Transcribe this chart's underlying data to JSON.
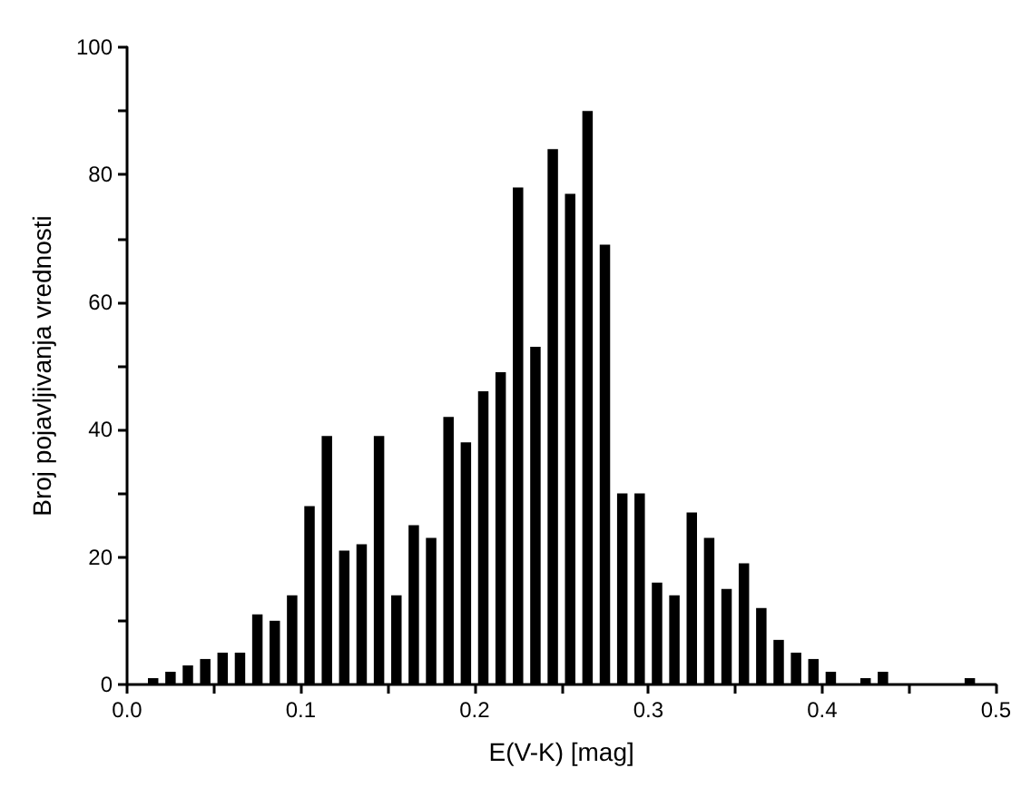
{
  "chart_data": {
    "type": "histogram",
    "xlabel": "E(V-K) [mag]",
    "ylabel": "Broj pojavljivanja vrednosti",
    "bins": [
      0.01,
      0.02,
      0.03,
      0.04,
      0.05,
      0.06,
      0.07,
      0.08,
      0.09,
      0.1,
      0.11,
      0.12,
      0.13,
      0.14,
      0.15,
      0.16,
      0.17,
      0.18,
      0.19,
      0.2,
      0.21,
      0.22,
      0.23,
      0.24,
      0.25,
      0.26,
      0.27,
      0.28,
      0.29,
      0.3,
      0.31,
      0.32,
      0.33,
      0.34,
      0.35,
      0.36,
      0.37,
      0.38,
      0.39,
      0.4,
      0.41,
      0.42,
      0.43,
      0.44,
      0.45,
      0.46,
      0.47,
      0.48,
      0.49
    ],
    "values": [
      1,
      2,
      3,
      4,
      5,
      5,
      11,
      10,
      14,
      28,
      39,
      21,
      22,
      39,
      14,
      25,
      23,
      42,
      38,
      46,
      49,
      78,
      53,
      84,
      77,
      90,
      69,
      30,
      30,
      16,
      14,
      27,
      23,
      15,
      19,
      12,
      7,
      5,
      4,
      2,
      0,
      1,
      2,
      0,
      0,
      0,
      0,
      1
    ],
    "color": "#000000",
    "xlim": [
      0,
      0.5
    ],
    "xticks": [
      {
        "value": 0,
        "label": "0.0"
      },
      {
        "value": 0.05,
        "label": null
      },
      {
        "value": 0.1,
        "label": "0.1"
      },
      {
        "value": 0.15,
        "label": null
      },
      {
        "value": 0.2,
        "label": "0.2"
      },
      {
        "value": 0.25,
        "label": null
      },
      {
        "value": 0.3,
        "label": "0.3"
      },
      {
        "value": 0.35,
        "label": null
      },
      {
        "value": 0.4,
        "label": "0.4"
      },
      {
        "value": 0.45,
        "label": null
      },
      {
        "value": 0.5,
        "label": "0.5"
      }
    ],
    "ylim": [
      0,
      100
    ],
    "yticks": [
      0,
      {
        "value": 10,
        "label": null
      },
      20,
      {
        "value": 30,
        "label": null
      },
      40,
      {
        "value": 50,
        "label": null
      },
      60,
      {
        "value": 70,
        "label": null
      },
      80,
      {
        "value": 90,
        "label": null
      },
      100
    ],
    "grid": false
  }
}
